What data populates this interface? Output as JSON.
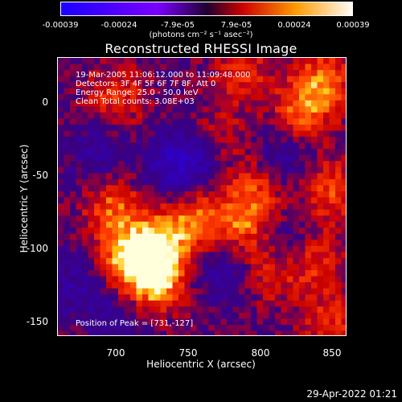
{
  "colorbar": {
    "ticks": [
      "-0.00039",
      "-0.00024",
      "-7.9e-05",
      "7.9e-05",
      "0.00024",
      "0.00039"
    ],
    "units": "(photons cm⁻² s⁻¹ asec⁻²)",
    "colors": [
      "#1a00ff",
      "#7a00ff",
      "#ff0000",
      "#ff9900",
      "#ffffff"
    ]
  },
  "title": "Reconstructed RHESSI Image",
  "info_lines": [
    "19-Mar-2005 11:06:12.000 to 11:09:48.000",
    "Detectors: 3F 4F 5F 6F 7F 8F, Att 0",
    "Energy Range: 25.0 - 50.0 keV",
    "Clean    Total counts: 3.08E+03"
  ],
  "peak_text": "Position of Peak = [731,-127]",
  "footer_date": "29-Apr-2022 01:21",
  "chart_data": {
    "type": "heatmap",
    "title": "Reconstructed RHESSI Image",
    "xlabel": "Heliocentric X (arcsec)",
    "ylabel": "Heliocentric Y (arcsec)",
    "xlim": [
      662,
      862
    ],
    "ylim": [
      -163,
      15
    ],
    "xticks": [
      700,
      750,
      800,
      850
    ],
    "yticks": [
      0,
      -50,
      -100,
      -150
    ],
    "value_range": [
      -0.00039,
      0.00039
    ],
    "peak": {
      "x": 731,
      "y": -127
    },
    "hotspots": [
      {
        "x": 730,
        "y": -125,
        "intensity": 0.95
      },
      {
        "x": 712,
        "y": -112,
        "intensity": 0.85
      },
      {
        "x": 735,
        "y": -100,
        "intensity": 0.6
      },
      {
        "x": 700,
        "y": -80,
        "intensity": 0.55
      },
      {
        "x": 702,
        "y": -10,
        "intensity": 0.45
      },
      {
        "x": 770,
        "y": -35,
        "intensity": 0.4
      },
      {
        "x": 760,
        "y": -90,
        "intensity": 0.55
      },
      {
        "x": 790,
        "y": -90,
        "intensity": 0.55
      },
      {
        "x": 800,
        "y": -65,
        "intensity": 0.5
      },
      {
        "x": 830,
        "y": -20,
        "intensity": 0.55
      },
      {
        "x": 845,
        "y": 0,
        "intensity": 0.6
      },
      {
        "x": 850,
        "y": -70,
        "intensity": 0.5
      },
      {
        "x": 840,
        "y": -115,
        "intensity": 0.45
      },
      {
        "x": 810,
        "y": -120,
        "intensity": 0.45
      },
      {
        "x": 790,
        "y": 5,
        "intensity": 0.4
      },
      {
        "x": 850,
        "y": -155,
        "intensity": 0.4
      }
    ],
    "coldspots": [
      {
        "x": 760,
        "y": -45,
        "intensity": -0.5
      },
      {
        "x": 740,
        "y": -55,
        "intensity": -0.45
      },
      {
        "x": 815,
        "y": -50,
        "intensity": -0.45
      },
      {
        "x": 820,
        "y": -105,
        "intensity": -0.35
      },
      {
        "x": 775,
        "y": -120,
        "intensity": -0.4
      },
      {
        "x": 690,
        "y": -45,
        "intensity": -0.35
      },
      {
        "x": 670,
        "y": -130,
        "intensity": -0.3
      },
      {
        "x": 700,
        "y": -150,
        "intensity": -0.3
      }
    ]
  }
}
